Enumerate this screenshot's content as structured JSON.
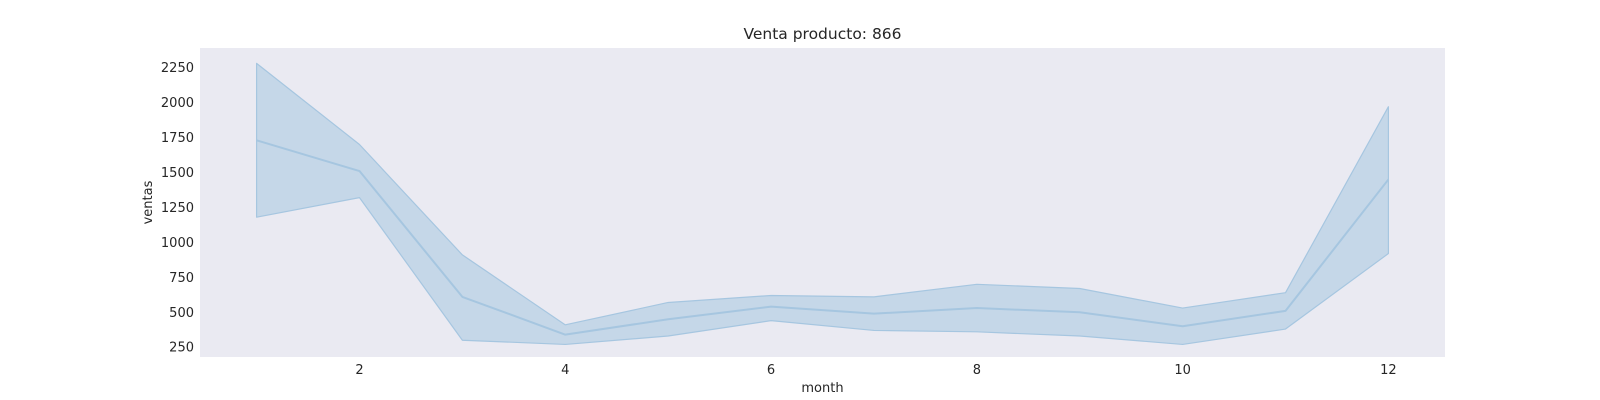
{
  "chart_data": {
    "type": "line",
    "title": "Venta producto: 866",
    "xlabel": "month",
    "ylabel": "ventas",
    "x": [
      1,
      2,
      3,
      4,
      5,
      6,
      7,
      8,
      9,
      10,
      11,
      12
    ],
    "x_ticks": [
      2,
      4,
      6,
      8,
      10,
      12
    ],
    "y_ticks": [
      250,
      500,
      750,
      1000,
      1250,
      1500,
      1750,
      2000,
      2250
    ],
    "xlim": [
      0.45,
      12.55
    ],
    "ylim": [
      180,
      2390
    ],
    "grid": false,
    "legend": "none",
    "series": [
      {
        "values": [
          1730,
          1510,
          610,
          340,
          450,
          540,
          490,
          530,
          500,
          400,
          510,
          1450
        ],
        "ci_upper": [
          2280,
          1700,
          910,
          410,
          570,
          620,
          610,
          700,
          670,
          530,
          640,
          1970
        ],
        "ci_lower": [
          1180,
          1320,
          300,
          270,
          330,
          440,
          370,
          360,
          330,
          270,
          380,
          920
        ]
      }
    ],
    "colors": {
      "plot_background": "#eaeaf2",
      "line": "#a6c6e0",
      "band_fill": "#a6c6e0",
      "band_edge": "#a6c6e0",
      "text": "#262626"
    }
  }
}
